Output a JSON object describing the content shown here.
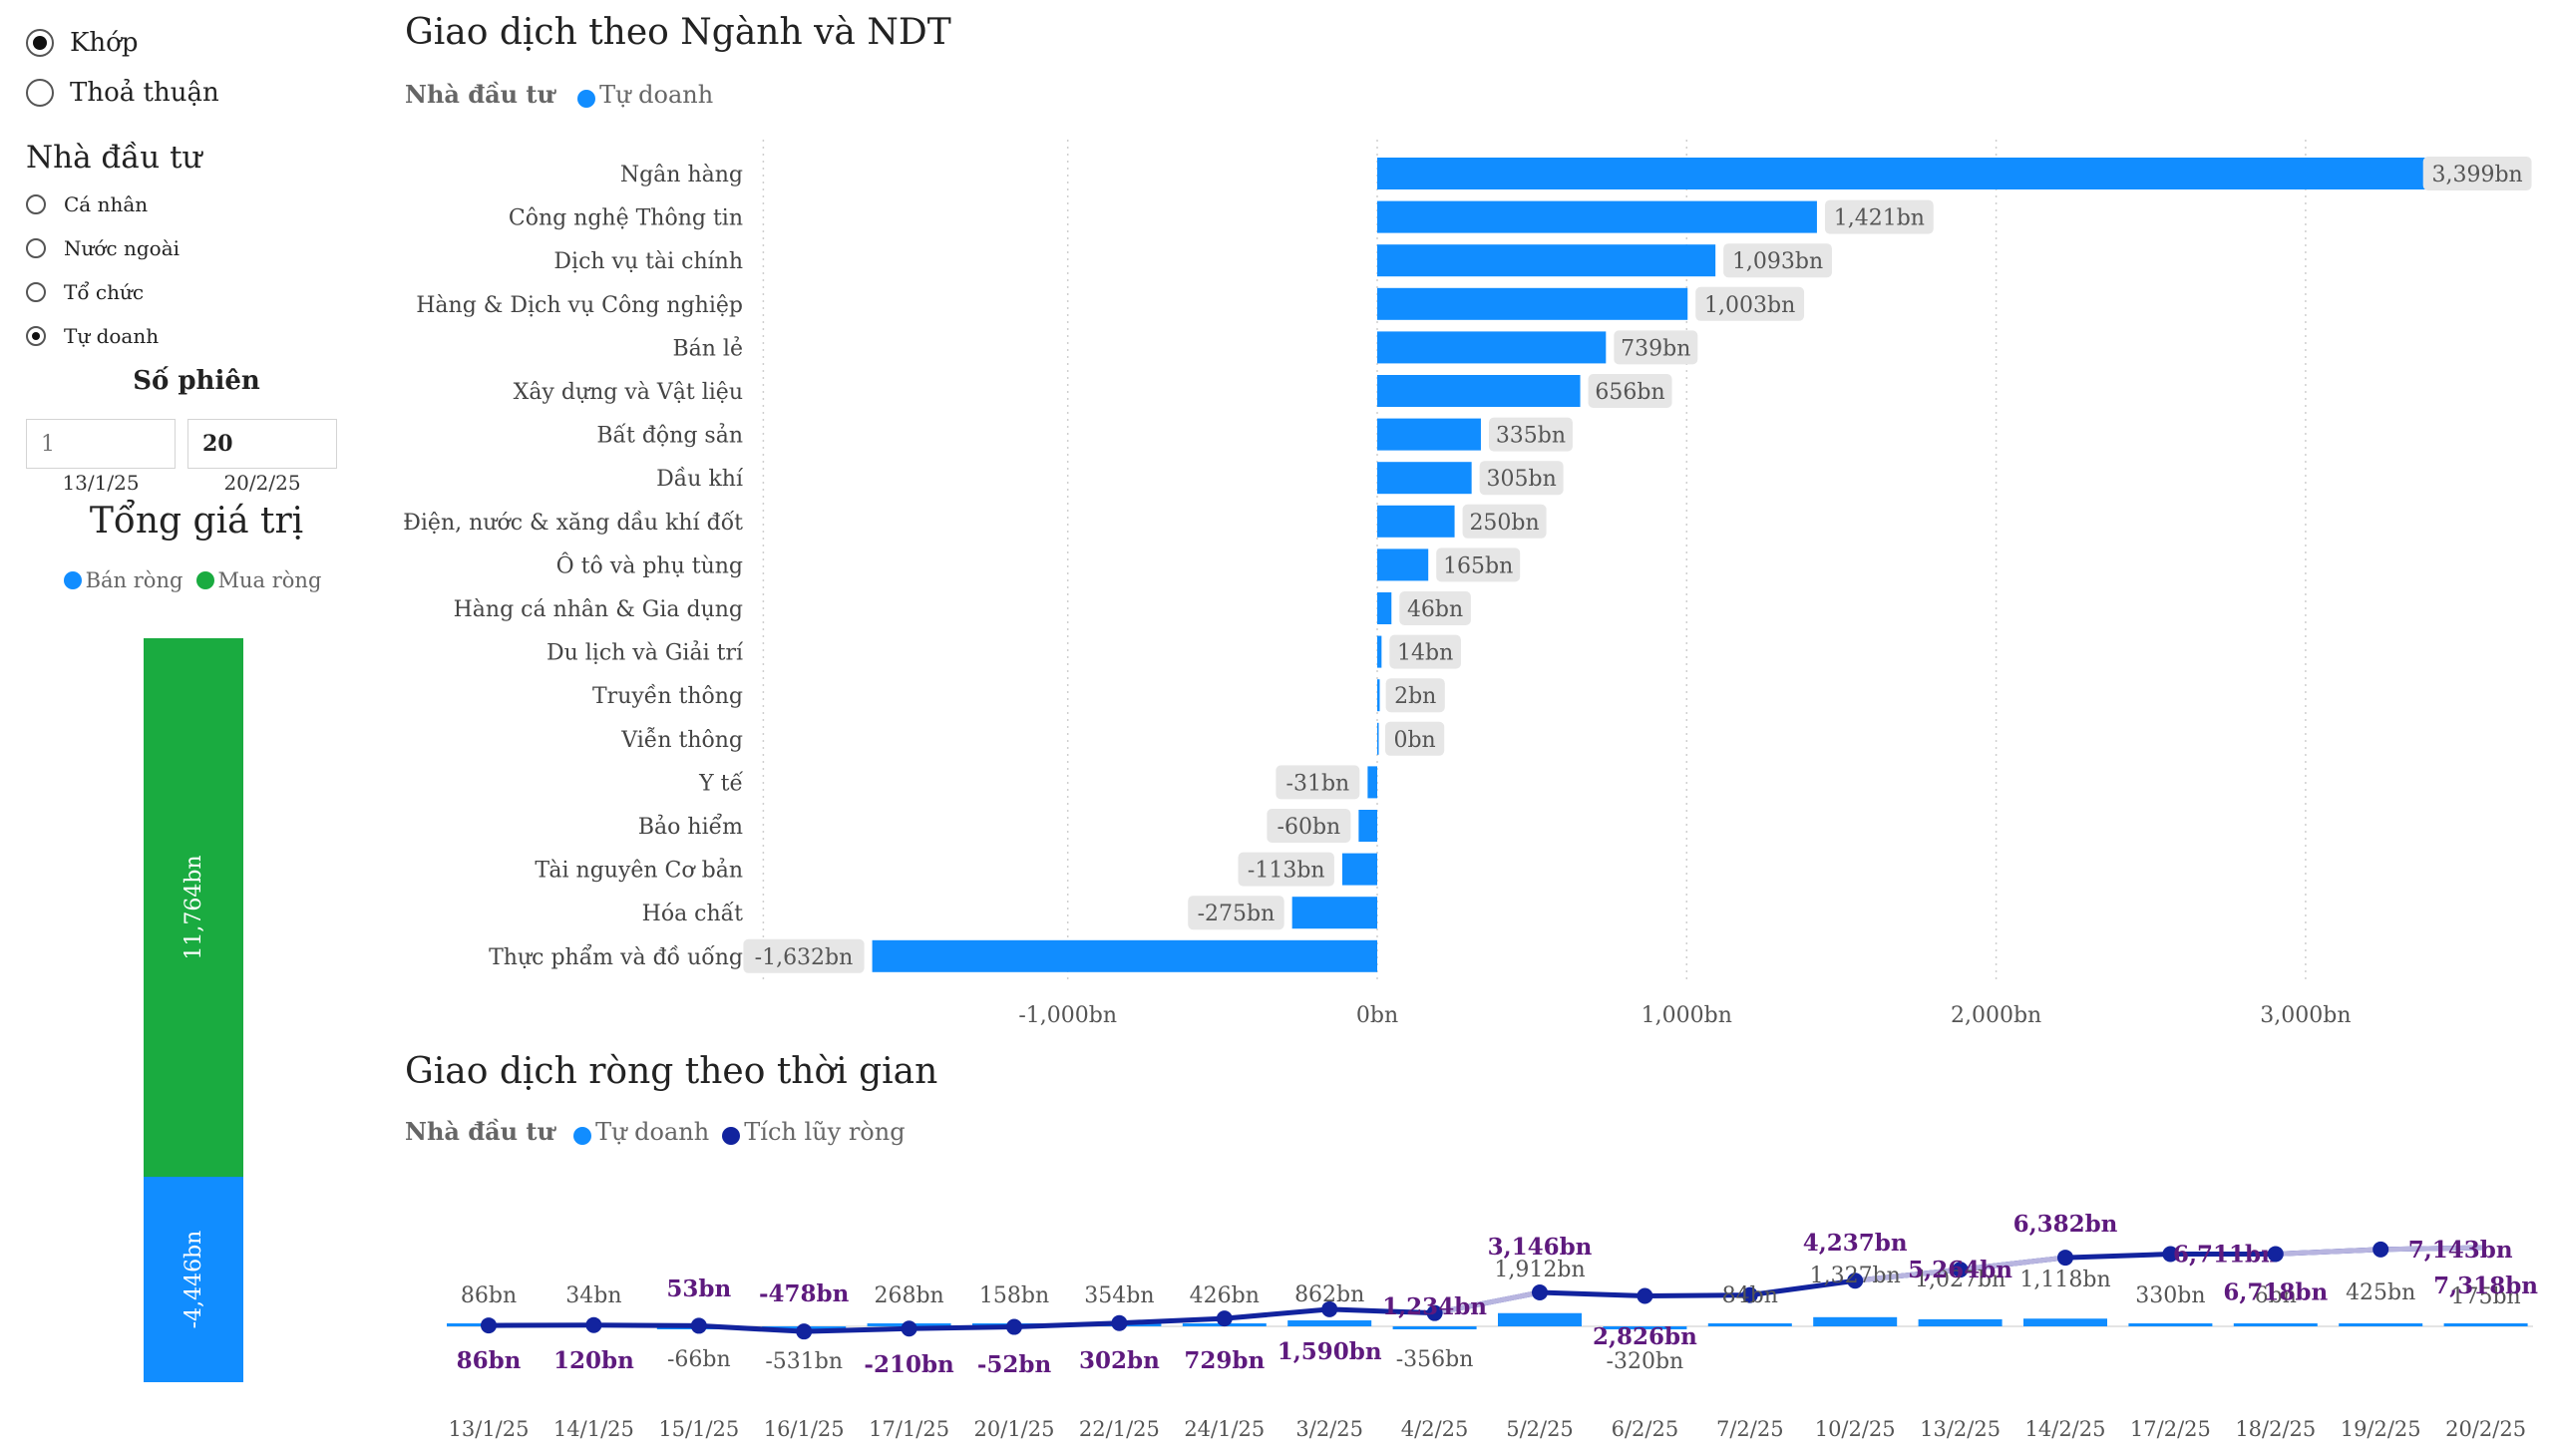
{
  "colors": {
    "blue": "#118dff",
    "green": "#1aab40",
    "navy": "#12239e",
    "purple": "#5e1a7e",
    "label_bg": "#e6e6e6",
    "light_line": "#b8b5e0"
  },
  "filters": {
    "mode_options": [
      {
        "label": "Khớp",
        "checked": true
      },
      {
        "label": "Thoả thuận",
        "checked": false
      }
    ],
    "investor_title": "Nhà đầu tư",
    "investor_options": [
      {
        "label": "Cá nhân",
        "checked": false
      },
      {
        "label": "Nước ngoài",
        "checked": false
      },
      {
        "label": "Tổ chức",
        "checked": false
      },
      {
        "label": "Tự doanh",
        "checked": true
      }
    ],
    "sessions_title": "Số phiên",
    "sessions_from": {
      "value": "",
      "placeholder": "1",
      "date": "13/1/25"
    },
    "sessions_to": {
      "value": "20",
      "date": "20/2/25"
    }
  },
  "total": {
    "title": "Tổng giá trị",
    "legend": [
      {
        "label": "Bán ròng",
        "color": "#118dff"
      },
      {
        "label": "Mua ròng",
        "color": "#1aab40"
      }
    ],
    "buy_label": "11,764bn",
    "sell_label": "-4,446bn"
  },
  "sector_chart": {
    "title": "Giao dịch theo Ngành và NDT",
    "legend_head": "Nhà đầu tư",
    "legend_item": "Tự doanh"
  },
  "timeline_chart": {
    "title": "Giao dịch ròng theo thời gian",
    "legend_head": "Nhà đầu tư",
    "legend_items": [
      "Tự doanh",
      "Tích lũy ròng"
    ]
  },
  "chart_data": [
    {
      "type": "bar",
      "orientation": "horizontal",
      "title": "Giao dịch theo Ngành và NDT",
      "categories": [
        "Ngân hàng",
        "Công nghệ Thông tin",
        "Dịch vụ tài chính",
        "Hàng & Dịch vụ Công nghiệp",
        "Bán lẻ",
        "Xây dựng và Vật liệu",
        "Bất động sản",
        "Dầu khí",
        "Điện, nước & xăng dầu khí đốt",
        "Ô tô và phụ tùng",
        "Hàng cá nhân & Gia dụng",
        "Du lịch và Giải trí",
        "Truyền thông",
        "Viễn thông",
        "Y tế",
        "Bảo hiểm",
        "Tài nguyên Cơ bản",
        "Hóa chất",
        "Thực phẩm và đồ uống"
      ],
      "values": [
        3399,
        1421,
        1093,
        1003,
        739,
        656,
        335,
        305,
        250,
        165,
        46,
        14,
        2,
        0,
        -31,
        -60,
        -113,
        -275,
        -1632
      ],
      "value_labels": [
        "3,399bn",
        "1,421bn",
        "1,093bn",
        "1,003bn",
        "739bn",
        "656bn",
        "335bn",
        "305bn",
        "250bn",
        "165bn",
        "46bn",
        "14bn",
        "2bn",
        "0bn",
        "-31bn",
        "-60bn",
        "-113bn",
        "-275bn",
        "-1,632bn"
      ],
      "x_ticks": [
        -1000,
        0,
        1000,
        2000,
        3000
      ],
      "x_tick_labels": [
        "-1,000bn",
        "0bn",
        "1,000bn",
        "2,000bn",
        "3,000bn"
      ],
      "xlim": [
        -2000,
        3700
      ],
      "grid": true,
      "series": [
        {
          "name": "Tự doanh",
          "color": "#118dff"
        }
      ]
    },
    {
      "type": "bar+line",
      "title": "Giao dịch ròng theo thời gian",
      "categories": [
        "13/1/25",
        "14/1/25",
        "15/1/25",
        "16/1/25",
        "17/1/25",
        "20/1/25",
        "22/1/25",
        "24/1/25",
        "3/2/25",
        "4/2/25",
        "5/2/25",
        "6/2/25",
        "7/2/25",
        "10/2/25",
        "13/2/25",
        "14/2/25",
        "17/2/25",
        "18/2/25",
        "19/2/25",
        "20/2/25"
      ],
      "series": [
        {
          "name": "Tự doanh",
          "type": "bar",
          "color": "#118dff",
          "values": [
            86,
            34,
            -66,
            -531,
            268,
            158,
            354,
            426,
            862,
            -356,
            1912,
            -320,
            84,
            1327,
            1027,
            1118,
            330,
            6,
            425,
            175
          ],
          "labels": [
            "86bn",
            "34bn",
            "-66bn",
            "-531bn",
            "268bn",
            "158bn",
            "354bn",
            "426bn",
            "862bn",
            "-356bn",
            "1,912bn",
            "-320bn",
            "84bn",
            "1,327bn",
            "1,027bn",
            "1,118bn",
            "330bn",
            "6bn",
            "425bn",
            "175bn"
          ]
        },
        {
          "name": "Tích lũy ròng",
          "type": "line",
          "color": "#12239e",
          "values": [
            86,
            120,
            53,
            -478,
            -210,
            -52,
            302,
            729,
            1590,
            1234,
            3146,
            2826,
            2910,
            4237,
            5264,
            6382,
            6711,
            6718,
            7143,
            7318
          ],
          "labels": [
            "86bn",
            "120bn",
            "53bn",
            "-478bn",
            "-210bn",
            "-52bn",
            "302bn",
            "729bn",
            "1,590bn",
            "1,234bn",
            "3,146bn",
            "2,826bn",
            "",
            "4,237bn",
            "5,264bn",
            "6,382bn",
            "6,711bn",
            "6,718bn",
            "7,143bn",
            "7,318bn"
          ]
        }
      ]
    }
  ]
}
